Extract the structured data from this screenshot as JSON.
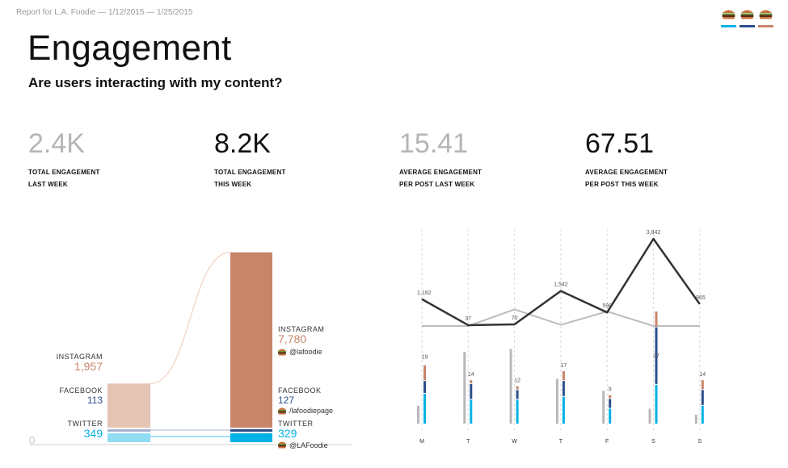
{
  "report_title": "Report for L.A. Foodie — 1/12/2015 — 1/25/2015",
  "accounts": [
    {
      "name": "instagram",
      "icon": "burger-icon",
      "color": "#00b2e6"
    },
    {
      "name": "facebook",
      "icon": "burger-icon",
      "color": "#2d4f8c"
    },
    {
      "name": "twitter",
      "icon": "burger-icon",
      "color": "#c8856a"
    }
  ],
  "heading": "Engagement",
  "subheading": "Are users interacting with my content?",
  "kpis": [
    {
      "value": "2.4K",
      "label_line1": "TOTAL ENGAGEMENT",
      "label_line2": "LAST WEEK",
      "muted": true
    },
    {
      "value": "8.2K",
      "label_line1": "TOTAL ENGAGEMENT",
      "label_line2": "THIS WEEK",
      "muted": false
    },
    {
      "value": "15.41",
      "label_line1": "AVERAGE ENGAGEMENT",
      "label_line2": "PER POST LAST WEEK",
      "muted": true
    },
    {
      "value": "67.51",
      "label_line1": "AVERAGE ENGAGEMENT",
      "label_line2": "PER POST THIS WEEK",
      "muted": false
    }
  ],
  "colors": {
    "instagram": "#c8856a",
    "instagram_light": "#e6c4b4",
    "facebook": "#2d4f8c",
    "facebook_light": "#a4b3cd",
    "twitter": "#00b2e6",
    "twitter_light": "#8fdcf3",
    "muted_text": "#b5b5b5",
    "dark_line": "#333333",
    "light_line": "#bdbdbd"
  },
  "chart_data": [
    {
      "type": "bar",
      "stacked": true,
      "categories": [
        "Last week",
        "This week"
      ],
      "axis_zero_label": "0",
      "series": [
        {
          "name": "INSTAGRAM",
          "values": [
            1957,
            7780
          ],
          "labels": [
            "1,957",
            "7,780"
          ],
          "handle": "@lafoodie",
          "handle_icon": "burger-icon"
        },
        {
          "name": "FACEBOOK",
          "values": [
            113,
            127
          ],
          "labels": [
            "113",
            "127"
          ],
          "handle": "/lafoodiepage",
          "handle_icon": "burger-icon"
        },
        {
          "name": "TWITTER",
          "values": [
            349,
            329
          ],
          "labels": [
            "349",
            "329"
          ],
          "handle": "@LAFoodie",
          "handle_icon": "burger-icon"
        }
      ]
    },
    {
      "type": "line",
      "categories": [
        "M",
        "T",
        "W",
        "T",
        "F",
        "S",
        "S"
      ],
      "series": [
        {
          "values": [
            1182,
            37,
            70,
            1542,
            598,
            3842,
            965
          ],
          "labels": [
            "1,182",
            "37",
            "70",
            "1,542",
            "598",
            "3,842",
            "965"
          ]
        },
        {
          "values": [
            0,
            0,
            730,
            50,
            640,
            0,
            0
          ]
        }
      ]
    },
    {
      "type": "bar",
      "grouped": true,
      "categories": [
        "M",
        "T",
        "W",
        "T",
        "F",
        "S",
        "S"
      ],
      "top_labels": [
        "19",
        "14",
        "12",
        "17",
        "9",
        "37",
        "14"
      ],
      "series": [
        {
          "values": [
            6,
            24,
            25,
            15,
            11,
            5,
            3
          ]
        },
        {
          "values": [
            5,
            1,
            1,
            3,
            1,
            5,
            3
          ]
        },
        {
          "values": [
            4,
            5,
            3,
            5,
            3,
            19,
            5
          ]
        },
        {
          "values": [
            10,
            8,
            8,
            9,
            5,
            13,
            6
          ]
        }
      ]
    }
  ]
}
